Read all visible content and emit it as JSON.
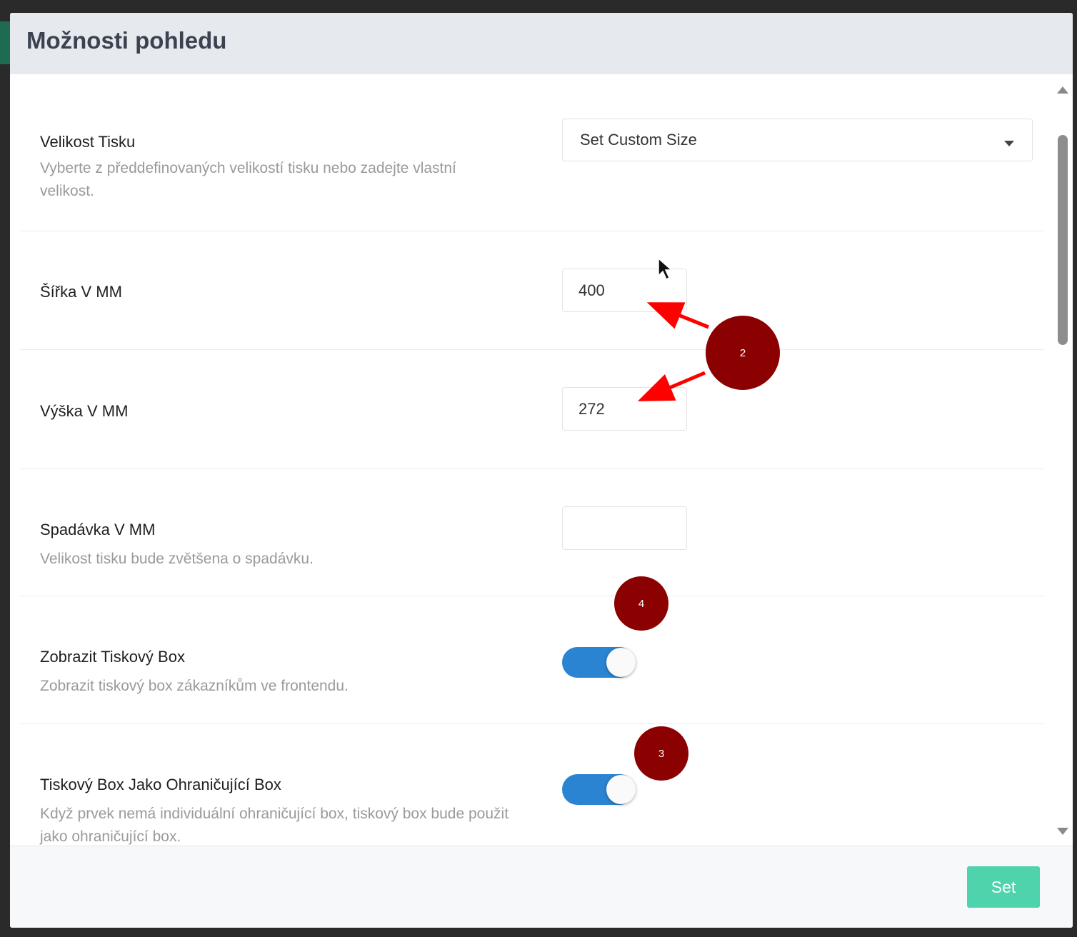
{
  "dialog": {
    "title": "Možnosti pohledu"
  },
  "settings": {
    "print_size": {
      "label": "Velikost Tisku",
      "description": "Vyberte z předdefinovaných velikostí tisku nebo zadejte vlastní velikost.",
      "selected": "Set Custom Size"
    },
    "width": {
      "label": "Šířka V MM",
      "value": "400"
    },
    "height": {
      "label": "Výška V MM",
      "value": "272"
    },
    "bleed": {
      "label": "Spadávka V MM",
      "description": "Velikost tisku bude zvětšena o spadávku.",
      "value": ""
    },
    "show_print_box": {
      "label": "Zobrazit Tiskový Box",
      "description": "Zobrazit tiskový box zákazníkům ve frontendu.",
      "enabled": true
    },
    "print_box_as_bounding": {
      "label": "Tiskový Box Jako Ohraničující Box",
      "description": "Když prvek nemá individuální ohraničující box, tiskový box bude použit jako ohraničující box.",
      "enabled": true
    }
  },
  "footer": {
    "set_label": "Set"
  },
  "annotations": {
    "marker_2": "2",
    "marker_3": "3",
    "marker_4": "4",
    "marker_color": "#8b0000",
    "arrow_color": "#ff0000"
  },
  "colors": {
    "header_bg": "#e6e9ed",
    "toggle_on": "#2b84d1",
    "set_button": "#4fd3ad"
  }
}
